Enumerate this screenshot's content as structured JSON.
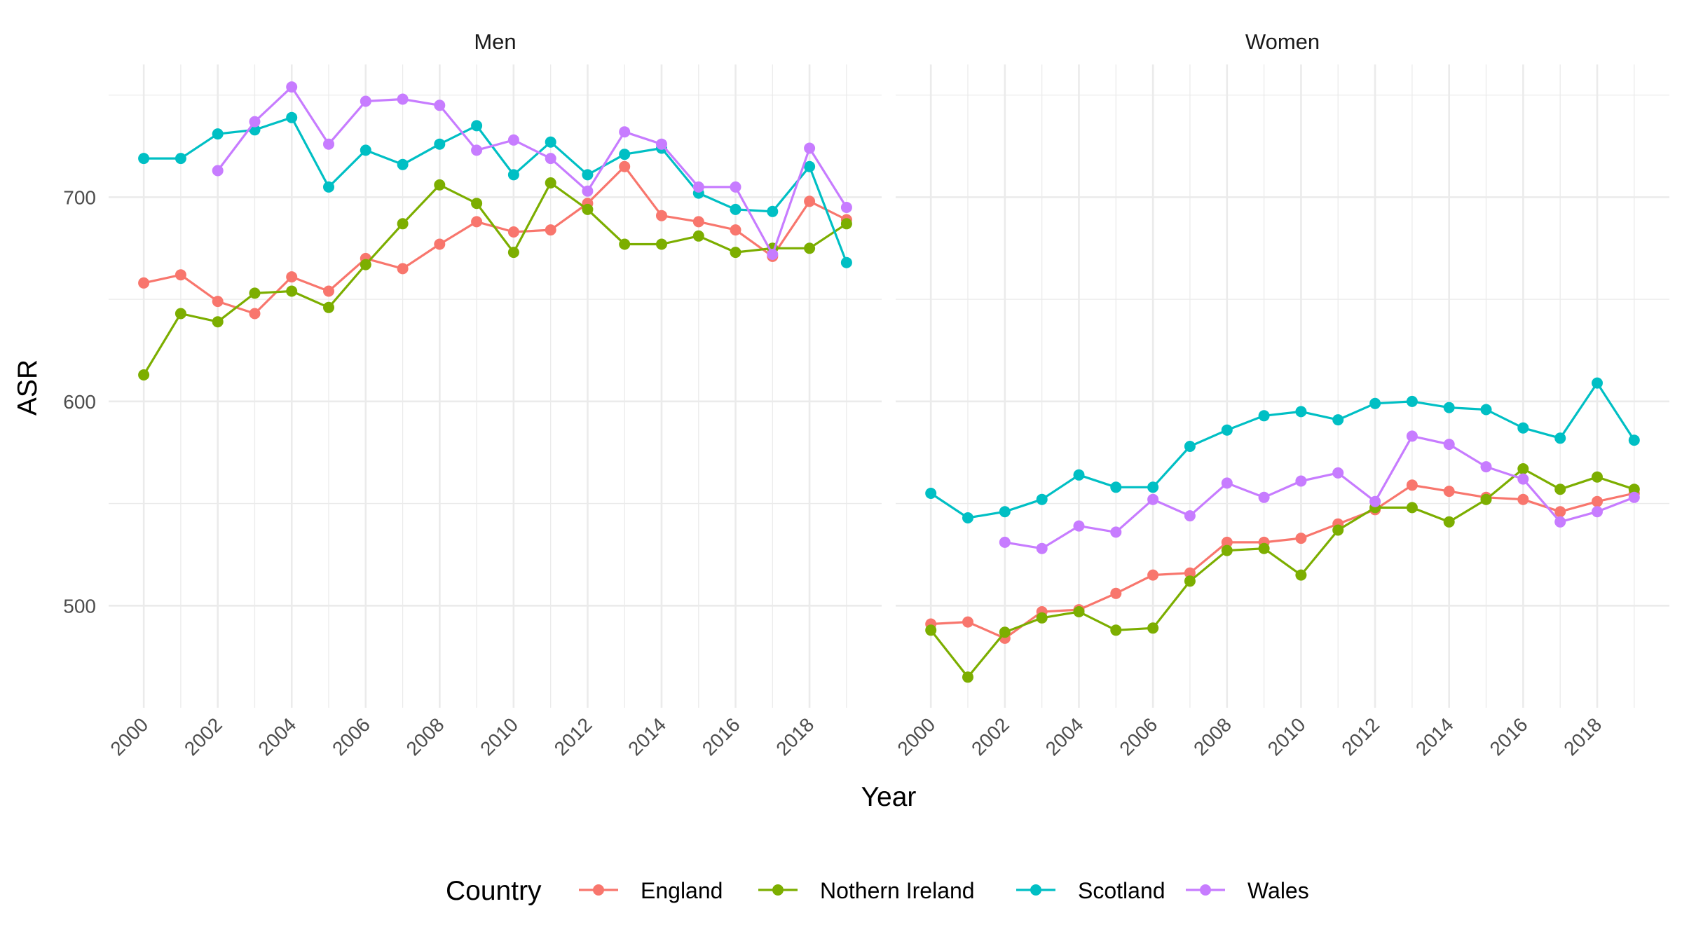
{
  "chart_data": {
    "type": "line",
    "facets": [
      "Men",
      "Women"
    ],
    "xlabel": "Year",
    "ylabel": "ASR",
    "x": [
      2000,
      2001,
      2002,
      2003,
      2004,
      2005,
      2006,
      2007,
      2008,
      2009,
      2010,
      2011,
      2012,
      2013,
      2014,
      2015,
      2016,
      2017,
      2018,
      2019
    ],
    "x_ticks": [
      "2000",
      "2002",
      "2004",
      "2006",
      "2008",
      "2010",
      "2012",
      "2014",
      "2016",
      "2018"
    ],
    "y_ticks": [
      "500",
      "600",
      "700"
    ],
    "ylim": [
      450,
      765
    ],
    "xlim": [
      1999.05,
      2019.95
    ],
    "grid": true,
    "legend": {
      "title": "Country",
      "position": "bottom",
      "entries": [
        "England",
        "Nothern Ireland",
        "Scotland",
        "Wales"
      ]
    },
    "colors": {
      "England": "#F8766D",
      "Nothern Ireland": "#7CAE00",
      "Scotland": "#00BFC4",
      "Wales": "#C77CFF"
    },
    "panels": [
      {
        "facet": "Men",
        "series": [
          {
            "name": "England",
            "values": [
              658,
              662,
              649,
              643,
              661,
              654,
              670,
              665,
              677,
              688,
              683,
              684,
              697,
              715,
              691,
              688,
              684,
              671,
              698,
              689
            ]
          },
          {
            "name": "Nothern Ireland",
            "values": [
              613,
              643,
              639,
              653,
              654,
              646,
              667,
              687,
              706,
              697,
              673,
              707,
              694,
              677,
              677,
              681,
              673,
              675,
              675,
              687
            ]
          },
          {
            "name": "Scotland",
            "values": [
              719,
              719,
              731,
              733,
              739,
              705,
              723,
              716,
              726,
              735,
              711,
              727,
              711,
              721,
              724,
              702,
              694,
              693,
              715,
              668
            ]
          },
          {
            "name": "Wales",
            "values": [
              null,
              null,
              713,
              737,
              754,
              726,
              747,
              748,
              745,
              723,
              728,
              719,
              703,
              732,
              726,
              705,
              705,
              672,
              724,
              695
            ]
          }
        ]
      },
      {
        "facet": "Women",
        "series": [
          {
            "name": "England",
            "values": [
              491,
              492,
              484,
              497,
              498,
              506,
              515,
              516,
              531,
              531,
              533,
              540,
              547,
              559,
              556,
              553,
              552,
              546,
              551,
              555
            ]
          },
          {
            "name": "Nothern Ireland",
            "values": [
              488,
              465,
              487,
              494,
              497,
              488,
              489,
              512,
              527,
              528,
              515,
              537,
              548,
              548,
              541,
              552,
              567,
              557,
              563,
              557
            ]
          },
          {
            "name": "Scotland",
            "values": [
              555,
              543,
              546,
              552,
              564,
              558,
              558,
              578,
              586,
              593,
              595,
              591,
              599,
              600,
              597,
              596,
              587,
              582,
              609,
              581
            ]
          },
          {
            "name": "Wales",
            "values": [
              null,
              null,
              531,
              528,
              539,
              536,
              552,
              544,
              560,
              553,
              561,
              565,
              551,
              583,
              579,
              568,
              562,
              541,
              546,
              553
            ]
          }
        ]
      }
    ]
  }
}
